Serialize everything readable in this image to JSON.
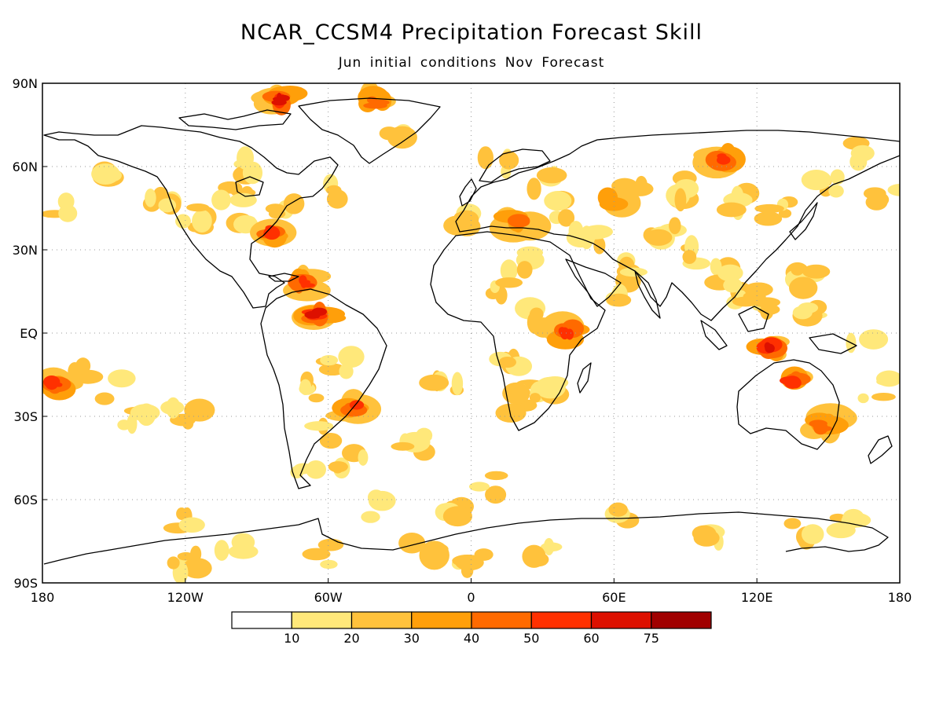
{
  "title": "NCAR_CCSM4 Precipitation Forecast Skill",
  "subtitle": "Jun initial conditions   Nov Forecast",
  "map": {
    "lat_labels": [
      "90N",
      "60N",
      "30N",
      "EQ",
      "30S",
      "60S",
      "90S"
    ],
    "lon_labels": [
      "180",
      "120W",
      "60W",
      "0",
      "60E",
      "120E",
      "180"
    ],
    "projection": "equirectangular",
    "lat_range": [
      -90,
      90
    ],
    "lon_range": [
      -180,
      180
    ],
    "grid": "dotted, every 30 degrees"
  },
  "colorbar": {
    "labels": [
      "10",
      "20",
      "30",
      "40",
      "50",
      "60",
      "75"
    ],
    "colors": [
      "#ffffff",
      "#ffe87a",
      "#ffc23c",
      "#ff9f0a",
      "#ff6a00",
      "#ff3000",
      "#dd1000",
      "#a00000"
    ]
  },
  "skill_regions": [
    {
      "name": "arctic-canada",
      "lon": -80,
      "lat": 84,
      "level": 5
    },
    {
      "name": "greenland-north",
      "lon": -40,
      "lat": 83,
      "level": 3
    },
    {
      "name": "eastern-usa",
      "lon": -85,
      "lat": 37,
      "level": 4
    },
    {
      "name": "caribbean",
      "lon": -70,
      "lat": 18,
      "level": 4
    },
    {
      "name": "northern-south-america",
      "lon": -65,
      "lat": 7,
      "level": 5
    },
    {
      "name": "southern-brazil",
      "lon": -48,
      "lat": -27,
      "level": 4
    },
    {
      "name": "siberia",
      "lon": 105,
      "lat": 63,
      "level": 4
    },
    {
      "name": "central-asia",
      "lon": 60,
      "lat": 48,
      "level": 2
    },
    {
      "name": "mediterranean",
      "lon": 20,
      "lat": 40,
      "level": 3
    },
    {
      "name": "east-africa",
      "lon": 40,
      "lat": 0,
      "level": 4
    },
    {
      "name": "maritime-continent",
      "lon": 125,
      "lat": -5,
      "level": 5
    },
    {
      "name": "northern-australia",
      "lon": 135,
      "lat": -18,
      "level": 4
    },
    {
      "name": "eastern-australia",
      "lon": 148,
      "lat": -33,
      "level": 3
    },
    {
      "name": "south-pacific",
      "lon": -175,
      "lat": -18,
      "level": 4
    },
    {
      "name": "antarctica-coast",
      "lon": -20,
      "lat": -78,
      "level": 1
    }
  ]
}
